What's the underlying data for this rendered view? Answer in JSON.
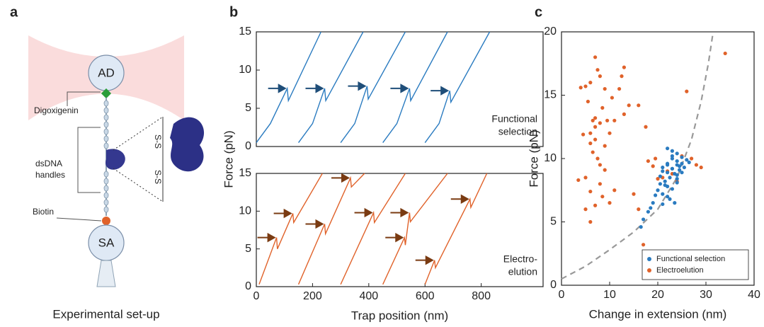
{
  "diagram": {
    "panel": "a",
    "trap_bead": "AD",
    "surface_bead": "SA",
    "digoxigenin": "Digoxigenin",
    "handles": [
      "dsDNA",
      "handles"
    ],
    "biotin": "Biotin",
    "disulfide": "S-S",
    "caption": "Experimental set-up"
  },
  "chart_data": [
    {
      "type": "line",
      "panel": "b",
      "ylabel": "Force (pN)",
      "xlim": [
        0,
        1020
      ],
      "ylim": [
        0,
        15
      ],
      "yticks": [
        0,
        5,
        10,
        15
      ],
      "annotation": [
        "Functional",
        "selection"
      ],
      "arrow_color": "#1f4e79",
      "arrows": {
        "x": [
          110,
          243,
          394,
          545,
          688
        ],
        "y": [
          7.6,
          7.6,
          7.9,
          7.6,
          7.3
        ]
      },
      "series": [
        {
          "color": "#2a7bc0",
          "x": [
            0,
            50,
            110,
            114,
            230
          ],
          "values": [
            0.5,
            3,
            7.6,
            6.0,
            15
          ]
        },
        {
          "color": "#2a7bc0",
          "x": [
            150,
            200,
            243,
            247,
            380
          ],
          "values": [
            0.5,
            3,
            7.6,
            6.0,
            15
          ]
        },
        {
          "color": "#2a7bc0",
          "x": [
            300,
            350,
            394,
            398,
            530
          ],
          "values": [
            0.5,
            3,
            7.9,
            6.2,
            15
          ]
        },
        {
          "color": "#2a7bc0",
          "x": [
            450,
            500,
            545,
            549,
            680
          ],
          "values": [
            0.5,
            3,
            7.6,
            6.0,
            15
          ]
        },
        {
          "color": "#2a7bc0",
          "x": [
            600,
            650,
            688,
            692,
            830
          ],
          "values": [
            0.5,
            3,
            7.3,
            5.8,
            15
          ]
        }
      ]
    },
    {
      "type": "line",
      "xlabel": "Trap position (nm)",
      "xlim": [
        0,
        1020
      ],
      "xticks": [
        0,
        200,
        400,
        600,
        800
      ],
      "ylim": [
        0,
        15
      ],
      "yticks": [
        0,
        5,
        10,
        15
      ],
      "annotation": [
        "Electro-",
        "elution"
      ],
      "arrow_color": "#7a3b12",
      "arrows": {
        "x": [
          72,
          130,
          243,
          335,
          417,
          545,
          527,
          760,
          634
        ],
        "y": [
          6.5,
          9.7,
          8.3,
          14.4,
          9.8,
          9.8,
          6.5,
          11.6,
          3.5
        ]
      },
      "series": [
        {
          "color": "#e0622a",
          "x": [
            10,
            72,
            75,
            130,
            133,
            235
          ],
          "values": [
            0.3,
            6.5,
            5,
            9.7,
            8.5,
            15
          ]
        },
        {
          "color": "#e0622a",
          "x": [
            150,
            243,
            246,
            335,
            338,
            385
          ],
          "values": [
            0.3,
            8.3,
            7,
            14.4,
            13.2,
            15
          ]
        },
        {
          "color": "#e0622a",
          "x": [
            300,
            417,
            420,
            530
          ],
          "values": [
            0.3,
            9.8,
            8.5,
            15
          ]
        },
        {
          "color": "#e0622a",
          "x": [
            450,
            527,
            530,
            545,
            548,
            680
          ],
          "values": [
            0.3,
            6.5,
            5.5,
            9.8,
            8.6,
            15
          ]
        },
        {
          "color": "#e0622a",
          "x": [
            600,
            634,
            637,
            760,
            763,
            820
          ],
          "values": [
            0.3,
            3.5,
            2.5,
            11.6,
            10.5,
            15
          ]
        }
      ]
    },
    {
      "type": "scatter",
      "panel": "c",
      "xlabel": "Change in extension (nm)",
      "ylabel": "Force (pN)",
      "xlim": [
        0,
        40
      ],
      "xticks": [
        0,
        10,
        20,
        30,
        40
      ],
      "ylim": [
        0,
        20
      ],
      "yticks": [
        0,
        5,
        10,
        15,
        20
      ],
      "legend": "lower right",
      "fit": {
        "color": "#999999",
        "x": [
          0,
          5,
          10,
          15,
          20,
          24,
          27,
          29,
          30.5,
          31.5
        ],
        "values": [
          0.5,
          1.5,
          2.8,
          4.2,
          6,
          8.5,
          11.5,
          14.5,
          17.5,
          20
        ]
      },
      "series": [
        {
          "name": "Functional selection",
          "color": "#2a7bc0",
          "x": [
            21,
            22,
            23,
            24,
            22.5,
            23.5,
            24.5,
            25,
            21.5,
            22,
            23,
            24,
            25.5,
            20.5,
            21,
            22,
            23,
            24,
            25,
            26,
            22,
            23,
            24,
            21,
            22.5,
            23.5,
            24.5,
            20,
            19,
            18,
            17,
            16.5,
            18.5,
            19.5,
            20.5,
            21.5,
            22,
            23,
            24,
            25,
            22,
            23,
            21,
            24,
            26.5
          ],
          "values": [
            9,
            9.5,
            9.2,
            9.8,
            8.5,
            8.8,
            9.1,
            9.6,
            8.2,
            7.8,
            10.2,
            10.4,
            9.3,
            8,
            7.2,
            7,
            7.6,
            8.4,
            8.9,
            9.9,
            10.8,
            10,
            8.1,
            9.3,
            6.8,
            6.5,
            9.4,
            7.5,
            6.5,
            5.8,
            5.2,
            4.6,
            6.1,
            7.1,
            8.6,
            7.9,
            9.6,
            9.2,
            8.7,
            10.1,
            8.9,
            10.6,
            6.4,
            9.5,
            9.7
          ]
        },
        {
          "name": "Electroelution",
          "color": "#e0622a",
          "x": [
            7,
            8,
            7.5,
            6,
            9,
            8.5,
            6.5,
            7,
            10,
            11,
            12,
            13,
            5,
            4,
            5.5,
            6,
            7,
            8,
            9,
            6.5,
            7.5,
            8,
            5,
            12.5,
            10.5,
            9.5,
            7,
            6,
            8,
            13,
            14,
            4.5,
            6,
            7,
            8.5,
            9,
            10,
            11,
            5,
            6,
            16,
            17.5,
            18,
            19,
            17,
            26,
            27,
            28,
            29,
            25,
            24,
            23,
            22,
            21,
            19.5,
            20,
            16,
            34,
            3.5,
            15
          ],
          "values": [
            18,
            16.5,
            17,
            16,
            15.5,
            14,
            13,
            12.5,
            12,
            13,
            15.5,
            17.2,
            15.7,
            15.6,
            14.5,
            12,
            13.2,
            12.8,
            11,
            10.5,
            10,
            9.5,
            8.5,
            16.5,
            14.8,
            13,
            11.5,
            11.2,
            8,
            13.5,
            14.2,
            11.9,
            7.4,
            6.3,
            7,
            9.1,
            6.5,
            7.5,
            6,
            5,
            14.2,
            12.5,
            9.8,
            9.4,
            3.2,
            15.3,
            10,
            9.5,
            9.3,
            10.2,
            8.2,
            8.8,
            9,
            8.5,
            10,
            8.4,
            6,
            18.3,
            8.3,
            7.2
          ]
        }
      ]
    }
  ]
}
